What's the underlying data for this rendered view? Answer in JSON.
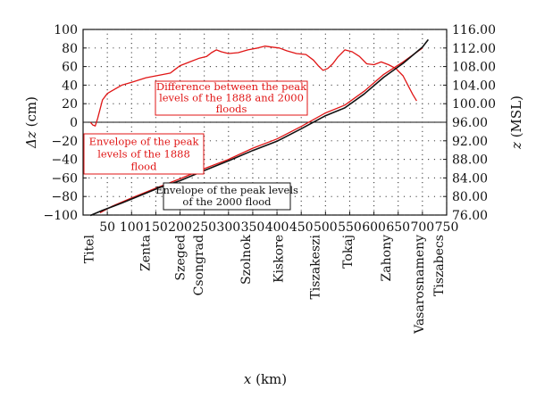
{
  "chart_data": {
    "type": "line",
    "xlabel_var": "x",
    "xlabel_unit": " (km)",
    "ylabel_left_var": "Δz",
    "ylabel_left_unit": " (cm)",
    "ylabel_right_var": "z",
    "ylabel_right_unit": " (MSL)",
    "xlim": [
      0,
      750
    ],
    "ylim_left": [
      -100,
      100
    ],
    "ylim_right": [
      76,
      116
    ],
    "x_ticks": [
      "50",
      "100",
      "150",
      "200",
      "250",
      "300",
      "350",
      "400",
      "450",
      "500",
      "550",
      "600",
      "650",
      "700",
      "750"
    ],
    "y_left_ticks": [
      "100",
      "80",
      "60",
      "40",
      "20",
      "0",
      "−20",
      "−40",
      "−60",
      "−80",
      "−100"
    ],
    "y_right_ticks": [
      "116.00",
      "112.00",
      "108.00",
      "104.00",
      "100.00",
      "96.00",
      "92.00",
      "88.00",
      "84.00",
      "80.00",
      "76.00"
    ],
    "grid": true,
    "towns": [
      {
        "name": "Titel",
        "x": 12
      },
      {
        "name": "Zenta",
        "x": 128
      },
      {
        "name": "Szeged",
        "x": 200
      },
      {
        "name": "Csongrad",
        "x": 238
      },
      {
        "name": "Szolnok",
        "x": 335
      },
      {
        "name": "Kiskore",
        "x": 403
      },
      {
        "name": "Tiszakeszi",
        "x": 478
      },
      {
        "name": "Tokaj",
        "x": 545
      },
      {
        "name": "Zahony",
        "x": 625
      },
      {
        "name": "Vasarosnameny",
        "x": 693
      },
      {
        "name": "Tiszabecs",
        "x": 733
      }
    ],
    "series": [
      {
        "name": "Difference between the peak levels of the 1888 and 2000 floods",
        "axis": "left",
        "color": "#e01515",
        "label_lines": [
          "Difference between the peak",
          "levels of the 1888 and 2000",
          "floods"
        ],
        "x": [
          15,
          20,
          25,
          30,
          35,
          40,
          50,
          60,
          80,
          100,
          130,
          160,
          180,
          190,
          200,
          220,
          240,
          255,
          265,
          275,
          285,
          300,
          320,
          340,
          360,
          375,
          390,
          405,
          420,
          440,
          460,
          475,
          485,
          495,
          505,
          515,
          525,
          540,
          555,
          570,
          585,
          600,
          615,
          630,
          645,
          660,
          670,
          680,
          688
        ],
        "y": [
          0,
          -3,
          -4,
          4,
          14,
          24,
          31,
          34,
          40,
          43,
          48,
          51,
          53,
          57,
          61,
          65,
          69,
          71,
          75,
          78,
          76,
          74,
          75,
          78,
          80,
          82,
          81,
          80,
          77,
          74,
          73,
          67,
          61,
          56,
          58,
          63,
          70,
          78,
          76,
          71,
          63,
          62,
          65,
          62,
          58,
          50,
          40,
          30,
          23
        ]
      },
      {
        "name": "Envelope of the peak levels of the 1888 flood",
        "axis": "right",
        "color": "#e01515",
        "label_lines": [
          "Envelope of the peak",
          "levels of the 1888",
          "flood"
        ],
        "x": [
          35,
          60,
          100,
          150,
          200,
          250,
          300,
          350,
          400,
          450,
          500,
          540,
          580,
          620,
          660,
          700
        ],
        "y": [
          76.5,
          77.9,
          79.7,
          81.8,
          83.8,
          86.0,
          88.0,
          90.4,
          92.4,
          95.1,
          98.0,
          99.7,
          102.7,
          106.3,
          109.0,
          112.0
        ]
      },
      {
        "name": "Envelope of the peak levels of the 2000 flood",
        "axis": "right",
        "color": "#111111",
        "label_lines": [
          "Envelope of the peak levels",
          "of the 2000 flood"
        ],
        "x": [
          15,
          40,
          80,
          120,
          160,
          200,
          250,
          300,
          350,
          400,
          450,
          500,
          540,
          580,
          620,
          660,
          700,
          712
        ],
        "y": [
          75.9,
          77.0,
          78.6,
          80.3,
          82.0,
          83.4,
          85.6,
          87.7,
          89.9,
          91.9,
          94.6,
          97.4,
          99.1,
          102.1,
          105.7,
          108.7,
          112.2,
          113.8
        ]
      }
    ]
  }
}
